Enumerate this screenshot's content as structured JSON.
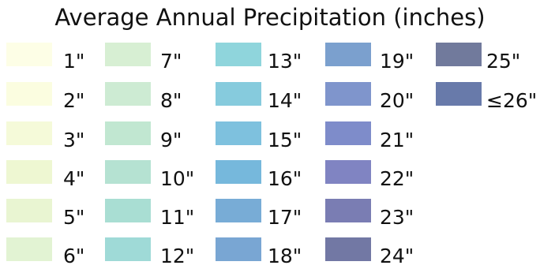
{
  "legend": {
    "title": "Average Annual Precipitation (inches)",
    "items": [
      {
        "label": "1\"",
        "color": "#fdfee6"
      },
      {
        "label": "2\"",
        "color": "#fbfde0"
      },
      {
        "label": "3\"",
        "color": "#f5fad9"
      },
      {
        "label": "4\"",
        "color": "#eef7d2"
      },
      {
        "label": "5\"",
        "color": "#e9f5d2"
      },
      {
        "label": "6\"",
        "color": "#e2f3d3"
      },
      {
        "label": "7\"",
        "color": "#d7efd3"
      },
      {
        "label": "8\"",
        "color": "#cdebd3"
      },
      {
        "label": "9\"",
        "color": "#c1e7d1"
      },
      {
        "label": "10\"",
        "color": "#b5e2d2"
      },
      {
        "label": "11\"",
        "color": "#a9ded3"
      },
      {
        "label": "12\"",
        "color": "#9fdad7"
      },
      {
        "label": "13\"",
        "color": "#8fd5dc"
      },
      {
        "label": "14\"",
        "color": "#86cbdd"
      },
      {
        "label": "15\"",
        "color": "#7ec1de"
      },
      {
        "label": "16\"",
        "color": "#76b8dc"
      },
      {
        "label": "17\"",
        "color": "#78acd6"
      },
      {
        "label": "18\"",
        "color": "#79a6d3"
      },
      {
        "label": "19\"",
        "color": "#7ba0ce"
      },
      {
        "label": "20\"",
        "color": "#7f95cc"
      },
      {
        "label": "21\"",
        "color": "#7e8cca"
      },
      {
        "label": "22\"",
        "color": "#8084c2"
      },
      {
        "label": "23\"",
        "color": "#7a7db3"
      },
      {
        "label": "24\"",
        "color": "#7278a4"
      },
      {
        "label": "25\"",
        "color": "#717a9c"
      },
      {
        "label": "≤26\"",
        "color": "#687aaa"
      }
    ]
  }
}
